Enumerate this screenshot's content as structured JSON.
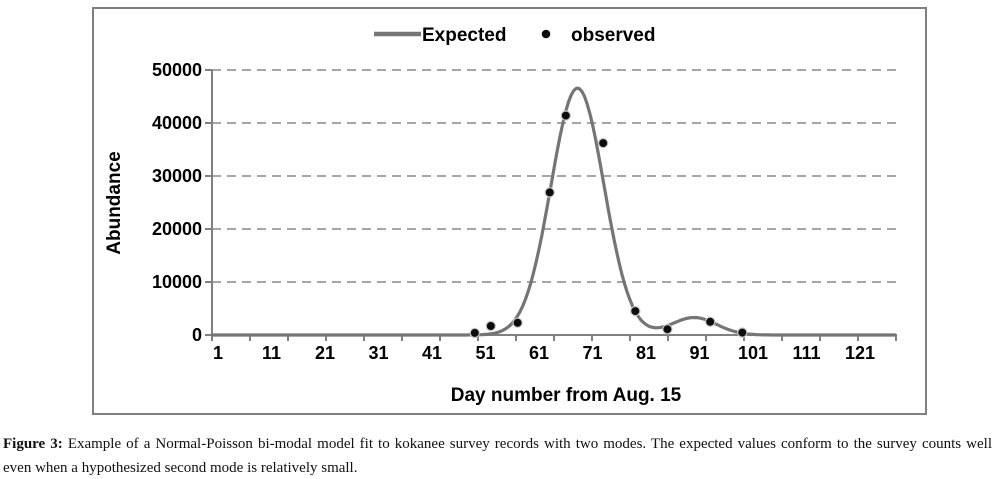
{
  "caption": {
    "label": "Figure 3:",
    "text": "Example of a Normal-Poisson bi-modal model fit to kokanee survey records with two modes. The expected values conform to the survey counts well even when a hypothesized second mode is relatively small."
  },
  "colors": {
    "frame_border": "#7f7f7f",
    "axis": "#808080",
    "gridline": "#a6a6a6",
    "curve": "#757575",
    "dot": "#0d0d0d",
    "dot_ring": "#c9c9c9",
    "text": "#000000",
    "background": "#ffffff"
  },
  "chart_data": {
    "type": "line+scatter",
    "title": "",
    "xlabel": "Day number from Aug. 15",
    "ylabel": "Abundance",
    "x_ticks": [
      1,
      11,
      21,
      31,
      41,
      51,
      61,
      71,
      81,
      91,
      101,
      111,
      121
    ],
    "y_ticks": [
      0,
      10000,
      20000,
      30000,
      40000,
      50000
    ],
    "xlim": [
      1,
      128
    ],
    "ylim": [
      0,
      50000
    ],
    "grid": "horizontal dashed",
    "legend_position": "top-center inside plot",
    "series": [
      {
        "name": "Expected",
        "type": "line",
        "color": "#757575",
        "model": "sum of two normal modes",
        "modes": [
          {
            "center": 68.2,
            "sd": 4.95,
            "peak": 46600
          },
          {
            "center": 90.0,
            "sd": 4.2,
            "peak": 3300
          }
        ]
      },
      {
        "name": "observed",
        "type": "scatter",
        "color": "#0d0d0d",
        "points": [
          [
            49,
            400
          ],
          [
            52,
            1700
          ],
          [
            57,
            2300
          ],
          [
            63,
            26900
          ],
          [
            66,
            41400
          ],
          [
            73,
            36200
          ],
          [
            79,
            4500
          ],
          [
            85,
            1100
          ],
          [
            93,
            2500
          ],
          [
            99,
            450
          ]
        ]
      }
    ]
  }
}
